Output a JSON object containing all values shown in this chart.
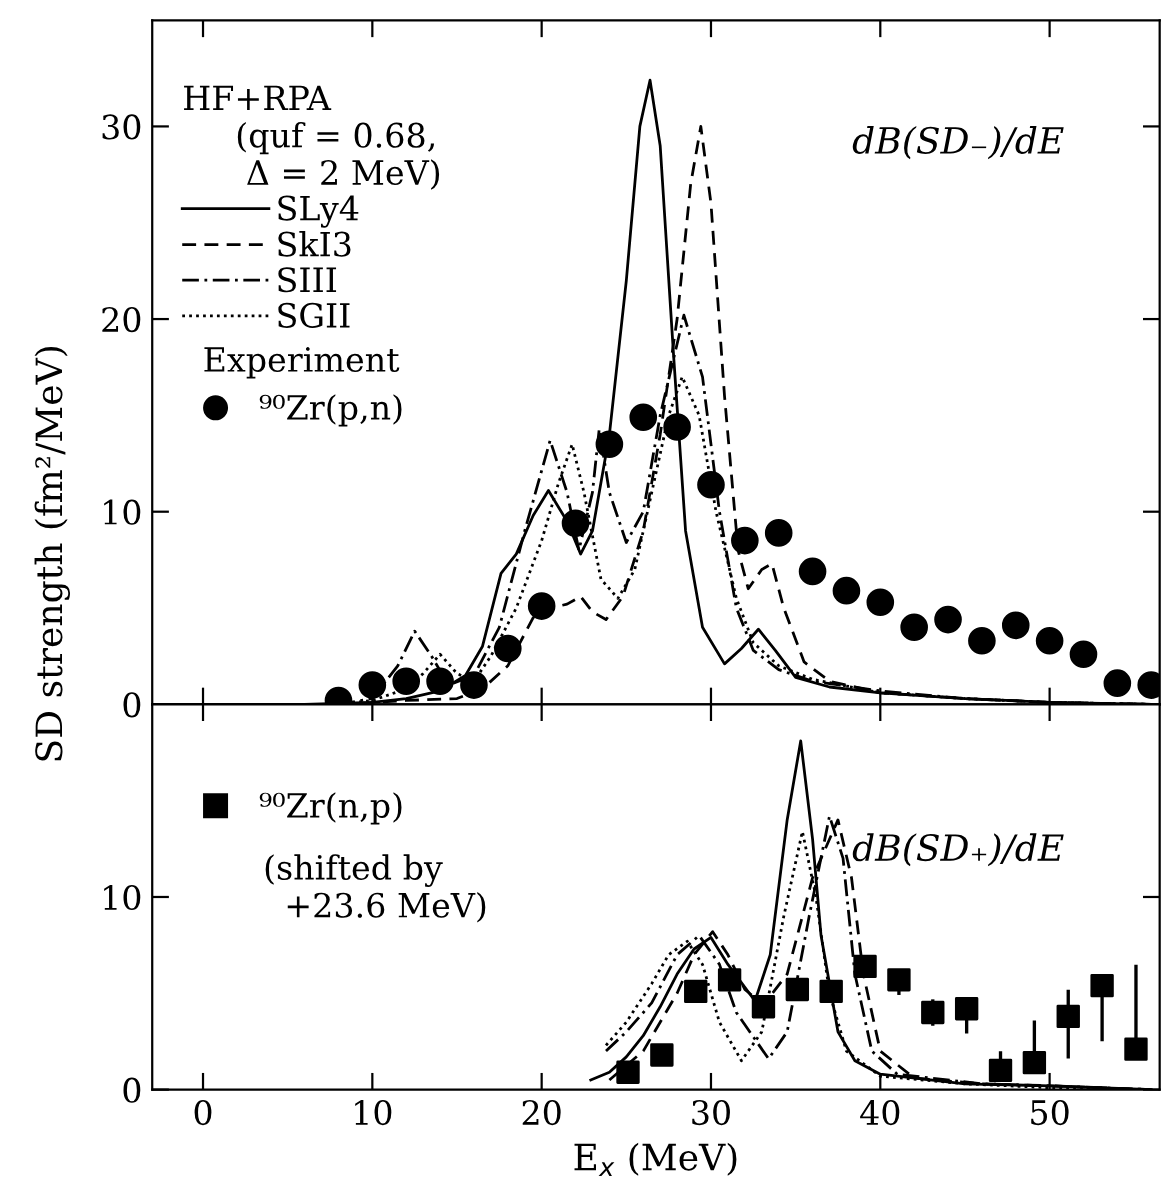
{
  "chart_data": [
    {
      "type": "line",
      "ylabel": "SD strength (fm²/MeV)",
      "xlim": [
        -3,
        56.5
      ],
      "xticks": [
        0,
        10,
        20,
        30,
        40,
        50
      ],
      "ylim": [
        0,
        35.5
      ],
      "yticks": [
        0,
        10,
        20,
        30
      ],
      "tick_labels": "y",
      "grid": false,
      "legend": "top left",
      "legend_title": "HF+RPA\n     (quf = 0.68,\n      Δ = 2 MeV)",
      "annotations": [
        "dB(SD₋)/dE",
        "Experiment"
      ],
      "series": [
        {
          "name": "SLy4",
          "color": "#000000",
          "line_style": "solid",
          "x": [
            -3,
            6,
            10,
            12,
            14,
            15.5,
            16.5,
            17.6,
            18.5,
            19.5,
            20.4,
            21.5,
            22.3,
            23,
            24,
            25,
            25.8,
            26.4,
            27,
            27.8,
            28.5,
            29.5,
            30.8,
            31.8,
            32.8,
            33.8,
            35,
            37,
            40,
            45,
            50,
            56
          ],
          "values": [
            0,
            0,
            0.1,
            0.3,
            0.7,
            1.5,
            3,
            6.8,
            7.8,
            9.8,
            11.1,
            9.5,
            7.8,
            9,
            14,
            22,
            30,
            32.4,
            29,
            18,
            9,
            4,
            2.1,
            2.9,
            3.9,
            2.8,
            1.4,
            0.9,
            0.6,
            0.3,
            0.1,
            0
          ]
        },
        {
          "name": "SkI3",
          "color": "#000000",
          "line_style": "dashed",
          "x": [
            8,
            12,
            15,
            16.5,
            18,
            19.5,
            20.5,
            21.5,
            22.3,
            23,
            23.8,
            24.8,
            26,
            27,
            28,
            28.8,
            29.4,
            30,
            30.8,
            31.6,
            32.2,
            33,
            33.6,
            34.3,
            35.5,
            37,
            40,
            45,
            50,
            56
          ],
          "values": [
            0,
            0.2,
            0.3,
            0.8,
            2,
            4.5,
            5,
            5.2,
            5.6,
            4.8,
            4.4,
            5.6,
            9,
            14,
            20,
            27,
            30,
            26,
            16,
            8,
            6,
            7,
            7.3,
            5,
            2.2,
            1.2,
            0.6,
            0.3,
            0.1,
            0
          ]
        },
        {
          "name": "SIII",
          "color": "#000000",
          "line_style": "dashdot",
          "x": [
            8,
            10,
            11.5,
            12.5,
            13.5,
            14.5,
            16,
            17.5,
            19,
            20.5,
            21.5,
            22.2,
            23,
            23.4,
            24,
            25,
            26,
            27,
            28.4,
            29.5,
            30.5,
            31.5,
            32.5,
            34,
            36,
            40,
            45,
            50,
            56
          ],
          "values": [
            0,
            0.3,
            2,
            3.8,
            2.5,
            1,
            1.5,
            4,
            9,
            13.7,
            11,
            8,
            11,
            14.3,
            11,
            8.4,
            10,
            15,
            20.2,
            17,
            10,
            5,
            2.8,
            1.8,
            1.2,
            0.7,
            0.3,
            0.1,
            0
          ]
        },
        {
          "name": "SGII",
          "color": "#000000",
          "line_style": "dotted",
          "x": [
            8,
            10,
            12,
            13,
            14,
            15,
            16,
            17,
            18.5,
            20,
            21,
            21.8,
            22.5,
            23.5,
            24.5,
            25.5,
            26.5,
            27.5,
            28.3,
            29.3,
            30.3,
            31.5,
            32.5,
            34,
            36,
            40,
            45,
            50,
            56
          ],
          "values": [
            0,
            0.2,
            0.8,
            1.6,
            2.6,
            1.6,
            1.2,
            2.5,
            5,
            8.5,
            11.5,
            13.5,
            11,
            6.5,
            5.5,
            7,
            11,
            15,
            17,
            15,
            10,
            5.5,
            3.2,
            2,
            1.3,
            0.6,
            0.3,
            0.1,
            0
          ]
        },
        {
          "name": "⁹⁰Zr(p,n)",
          "type": "scatter",
          "marker": "circle",
          "color": "#000000",
          "x": [
            8,
            10,
            12,
            14,
            16,
            18,
            20,
            22,
            24,
            26,
            28,
            30,
            32,
            34,
            36,
            38,
            40,
            42,
            44,
            46,
            48,
            50,
            52,
            54,
            56
          ],
          "values": [
            0.2,
            1.0,
            1.2,
            1.2,
            1.0,
            2.9,
            5.1,
            9.4,
            13.5,
            14.9,
            14.4,
            11.4,
            8.5,
            8.9,
            6.9,
            5.9,
            5.3,
            4.0,
            4.4,
            3.3,
            4.1,
            3.3,
            2.6,
            1.1,
            1.0
          ]
        }
      ]
    },
    {
      "type": "line",
      "xlabel": "E$_{x}$ (MeV)",
      "xlim": [
        -3,
        56.5
      ],
      "xticks": [
        0,
        10,
        20,
        30,
        40,
        50
      ],
      "ylim": [
        0,
        20
      ],
      "yticks": [
        0,
        10
      ],
      "grid": false,
      "legend": "top left",
      "annotations": [
        "(shifted by\n  +23.6 MeV)",
        "dB(SD₊)/dE"
      ],
      "series": [
        {
          "color": "#000000",
          "line_style": "solid",
          "x": [
            22.9,
            24,
            25,
            26,
            27,
            28,
            29,
            30,
            31,
            32.6,
            33.5,
            34.5,
            35.3,
            36,
            36.5,
            37.5,
            38.5,
            40,
            45,
            50,
            56
          ],
          "values": [
            0.5,
            0.9,
            1.7,
            2.8,
            4.3,
            6,
            7.3,
            7.9,
            6.5,
            4.6,
            7,
            14,
            18.1,
            13,
            8,
            3,
            1.5,
            0.8,
            0.3,
            0.2,
            0
          ]
        },
        {
          "color": "#000000",
          "line_style": "dashed",
          "x": [
            24,
            26,
            28,
            29,
            30.1,
            31,
            32,
            33.1,
            34.5,
            36,
            37.5,
            38.3,
            39,
            40,
            42,
            46,
            50,
            56
          ],
          "values": [
            0.5,
            2,
            5,
            7,
            8.2,
            7,
            5.2,
            4.4,
            6,
            11,
            14,
            11,
            6,
            2,
            0.6,
            0.3,
            0.2,
            0
          ]
        },
        {
          "color": "#000000",
          "line_style": "dashdot",
          "x": [
            23.8,
            25,
            26.5,
            28,
            29.3,
            30.5,
            31.5,
            33.4,
            34.5,
            35.8,
            37,
            37.8,
            38.5,
            39.5,
            41,
            46,
            50,
            56
          ],
          "values": [
            2,
            3,
            4.5,
            7,
            8,
            6.5,
            4,
            1.6,
            3,
            9,
            14.2,
            12,
            6,
            2,
            0.8,
            0.3,
            0.2,
            0
          ]
        },
        {
          "color": "#000000",
          "line_style": "dotted",
          "x": [
            23.8,
            25,
            26.5,
            27.5,
            28.6,
            29.5,
            30.5,
            31.8,
            33,
            34.3,
            35.4,
            36.2,
            37,
            38,
            40,
            45,
            50,
            56
          ],
          "values": [
            2.3,
            3.5,
            5.5,
            7,
            7.7,
            6.5,
            3.5,
            1.5,
            3,
            9,
            13.4,
            10,
            5,
            2,
            0.7,
            0.3,
            0.1,
            0
          ]
        },
        {
          "name": "⁹⁰Zr(n,p)",
          "type": "scatter",
          "marker": "square",
          "color": "#000000",
          "x": [
            25.1,
            27.1,
            29.1,
            31.1,
            33.1,
            35.1,
            37.1,
            39.1,
            41.1,
            43.1,
            45.1,
            47.1,
            49.1,
            51.1,
            53.1,
            55.1
          ],
          "values": [
            0.9,
            1.8,
            5.1,
            5.7,
            4.3,
            5.2,
            5.1,
            6.4,
            5.7,
            4.0,
            4.2,
            1.0,
            1.4,
            3.8,
            5.4,
            2.1
          ],
          "errors": [
            null,
            null,
            null,
            null,
            null,
            null,
            null,
            null,
            [
              5.0,
              5.7
            ],
            [
              3.4,
              4.6
            ],
            [
              3.0,
              4.7
            ],
            [
              0.5,
              1.9
            ],
            [
              1.4,
              3.5
            ],
            [
              1.7,
              5.1
            ],
            [
              2.6,
              5.4
            ],
            [
              2.1,
              6.4
            ]
          ]
        }
      ]
    }
  ]
}
